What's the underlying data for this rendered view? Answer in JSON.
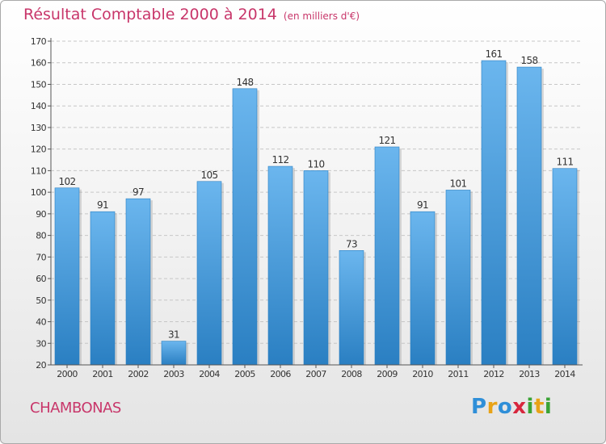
{
  "title": "Résultat Comptable 2000 à 2014",
  "subtitle": "(en milliers d'€)",
  "commune": "CHAMBONAS",
  "logo": {
    "letters": [
      "P",
      "r",
      "o",
      "x",
      "i",
      "t",
      "i"
    ],
    "colors": [
      "#2f8fd8",
      "#e8a317",
      "#2f8fd8",
      "#d7263d",
      "#3aa335",
      "#e8a317",
      "#3aa335"
    ]
  },
  "colors": {
    "accent": "#c8366a",
    "bar_top": "#6bb6ee",
    "bar_bottom": "#2a7fc2"
  },
  "chart_data": {
    "type": "bar",
    "categories": [
      "2000",
      "2001",
      "2002",
      "2003",
      "2004",
      "2005",
      "2006",
      "2007",
      "2008",
      "2009",
      "2010",
      "2011",
      "2012",
      "2013",
      "2014"
    ],
    "values": [
      102,
      91,
      97,
      31,
      105,
      148,
      112,
      110,
      73,
      121,
      91,
      101,
      161,
      158,
      111
    ],
    "title": "Résultat Comptable 2000 à 2014",
    "subtitle": "(en milliers d'€)",
    "ylim": [
      20,
      170
    ],
    "yticks": [
      20,
      30,
      40,
      50,
      60,
      70,
      80,
      90,
      100,
      110,
      120,
      130,
      140,
      150,
      160,
      170
    ],
    "grid": true
  }
}
